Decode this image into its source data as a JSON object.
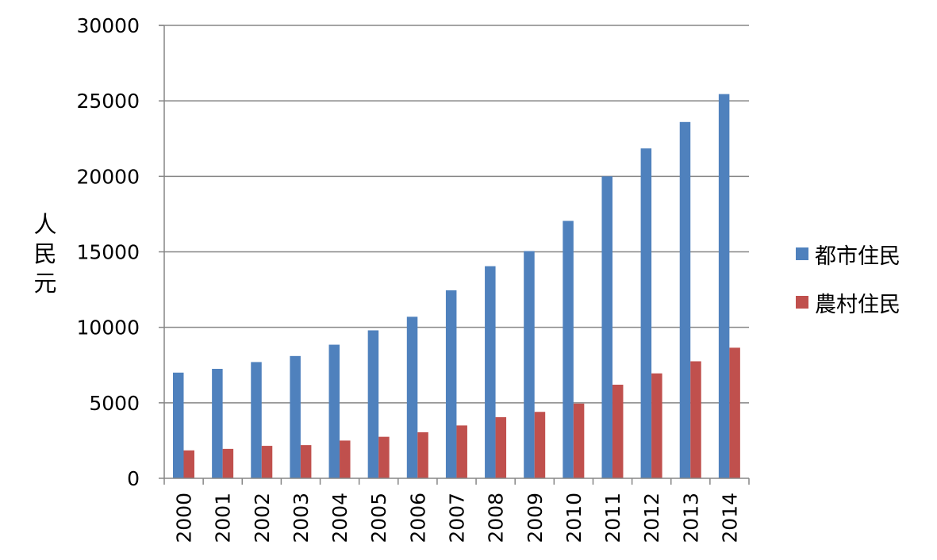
{
  "chart_data": {
    "type": "bar",
    "categories": [
      "2000",
      "2001",
      "2002",
      "2003",
      "2004",
      "2005",
      "2006",
      "2007",
      "2008",
      "2009",
      "2010",
      "2011",
      "2012",
      "2013",
      "2014"
    ],
    "series": [
      {
        "name": "都市住民",
        "color": "#4f81bd",
        "values": [
          7000,
          7250,
          7700,
          8100,
          8850,
          9800,
          10700,
          12450,
          14050,
          15050,
          17050,
          20000,
          21850,
          23600,
          25450
        ]
      },
      {
        "name": "農村住民",
        "color": "#c0504d",
        "values": [
          1850,
          1950,
          2150,
          2200,
          2500,
          2750,
          3050,
          3500,
          4050,
          4400,
          4950,
          6200,
          6950,
          7750,
          8650
        ]
      }
    ],
    "ylabel": "人民元",
    "ylim": [
      0,
      30000
    ],
    "yticks": [
      0,
      5000,
      10000,
      15000,
      20000,
      25000,
      30000
    ],
    "grid": true,
    "legend": "right"
  }
}
